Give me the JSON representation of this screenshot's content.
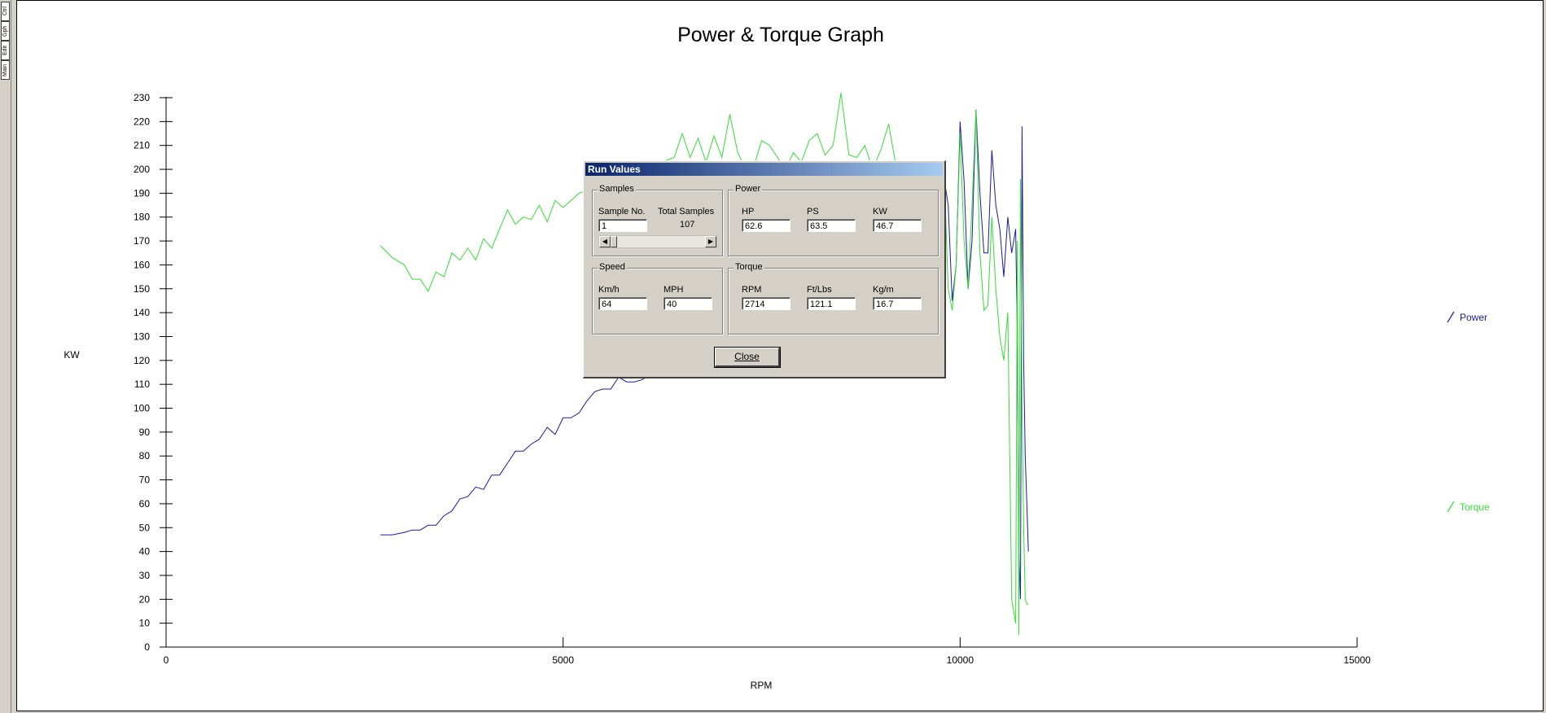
{
  "side_tabs": [
    "Main",
    "Edit",
    "Gph",
    "Ctrl"
  ],
  "chart_data": {
    "type": "line",
    "title": "Power & Torque Graph",
    "xlabel": "RPM",
    "ylabel": "KW",
    "xlim": [
      0,
      15000
    ],
    "ylim": [
      0,
      230
    ],
    "x_ticks": [
      0,
      5000,
      10000,
      15000
    ],
    "y_ticks": [
      0,
      10,
      20,
      30,
      40,
      50,
      60,
      70,
      80,
      90,
      100,
      110,
      120,
      130,
      140,
      150,
      160,
      170,
      180,
      190,
      200,
      210,
      220,
      230
    ],
    "legend_position": "right",
    "series": [
      {
        "name": "Power",
        "color": "#1a1aa0",
        "x": [
          2700,
          2850,
          3000,
          3100,
          3200,
          3300,
          3400,
          3500,
          3600,
          3700,
          3800,
          3900,
          4000,
          4100,
          4200,
          4300,
          4400,
          4500,
          4600,
          4700,
          4800,
          4900,
          5000,
          5100,
          5200,
          5300,
          5400,
          5500,
          5600,
          5700,
          5800,
          5900,
          6000,
          9800,
          9850,
          9900,
          9950,
          10000,
          10050,
          10100,
          10150,
          10200,
          10250,
          10300,
          10350,
          10400,
          10450,
          10500,
          10550,
          10600,
          10650,
          10700,
          10720,
          10740,
          10760,
          10780,
          10800,
          10820,
          10840,
          10860
        ],
        "y": [
          47,
          47,
          48,
          49,
          49,
          51,
          51,
          55,
          57,
          62,
          63,
          67,
          66,
          72,
          72,
          77,
          82,
          82,
          85,
          87,
          92,
          89,
          96,
          96,
          98,
          103,
          107,
          108,
          108,
          113,
          111,
          111,
          112,
          196,
          185,
          145,
          160,
          220,
          195,
          150,
          170,
          225,
          190,
          165,
          165,
          208,
          185,
          175,
          155,
          180,
          165,
          175,
          130,
          40,
          20,
          218,
          120,
          80,
          60,
          40
        ]
      },
      {
        "name": "Torque",
        "color": "#33dd33",
        "x": [
          2700,
          2850,
          3000,
          3100,
          3200,
          3300,
          3400,
          3500,
          3600,
          3700,
          3800,
          3900,
          4000,
          4100,
          4200,
          4300,
          4400,
          4500,
          4600,
          4700,
          4800,
          4900,
          5000,
          5100,
          5200,
          6400,
          6500,
          6600,
          6700,
          6800,
          6900,
          7000,
          7100,
          7200,
          7300,
          7400,
          7500,
          7600,
          7700,
          7800,
          7900,
          8000,
          8100,
          8200,
          8300,
          8400,
          8500,
          8600,
          8700,
          8800,
          8900,
          9000,
          9100,
          9200,
          9800,
          9850,
          9900,
          9950,
          10000,
          10050,
          10100,
          10150,
          10200,
          10250,
          10300,
          10350,
          10400,
          10450,
          10500,
          10550,
          10600,
          10650,
          10700,
          10720,
          10740,
          10760,
          10780,
          10800,
          10820,
          10840,
          10860
        ],
        "y": [
          168,
          163,
          160,
          154,
          154,
          149,
          157,
          155,
          165,
          162,
          167,
          162,
          171,
          167,
          175,
          183,
          177,
          180,
          179,
          185,
          178,
          187,
          184,
          187,
          190,
          205,
          215,
          205,
          213,
          203,
          214,
          205,
          223,
          207,
          200,
          201,
          212,
          210,
          205,
          200,
          207,
          203,
          212,
          215,
          206,
          210,
          232,
          206,
          205,
          210,
          200,
          208,
          219,
          200,
          198,
          150,
          141,
          160,
          215,
          170,
          150,
          185,
          225,
          165,
          141,
          143,
          180,
          150,
          130,
          120,
          140,
          20,
          10,
          170,
          5,
          196,
          100,
          50,
          20,
          18,
          18
        ]
      }
    ]
  },
  "dialog": {
    "title": "Run Values",
    "samples": {
      "group_label": "Samples",
      "sample_no_label": "Sample No.",
      "sample_no_value": "1",
      "total_label": "Total Samples",
      "total_value": "107"
    },
    "power": {
      "group_label": "Power",
      "hp_label": "HP",
      "hp_value": "62.6",
      "ps_label": "PS",
      "ps_value": "63.5",
      "kw_label": "KW",
      "kw_value": "46.7"
    },
    "speed": {
      "group_label": "Speed",
      "kmh_label": "Km/h",
      "kmh_value": "64",
      "mph_label": "MPH",
      "mph_value": "40"
    },
    "torque": {
      "group_label": "Torque",
      "rpm_label": "RPM",
      "rpm_value": "2714",
      "ftlbs_label": "Ft/Lbs",
      "ftlbs_value": "121.1",
      "kgm_label": "Kg/m",
      "kgm_value": "16.7"
    },
    "close_label": "Close"
  }
}
